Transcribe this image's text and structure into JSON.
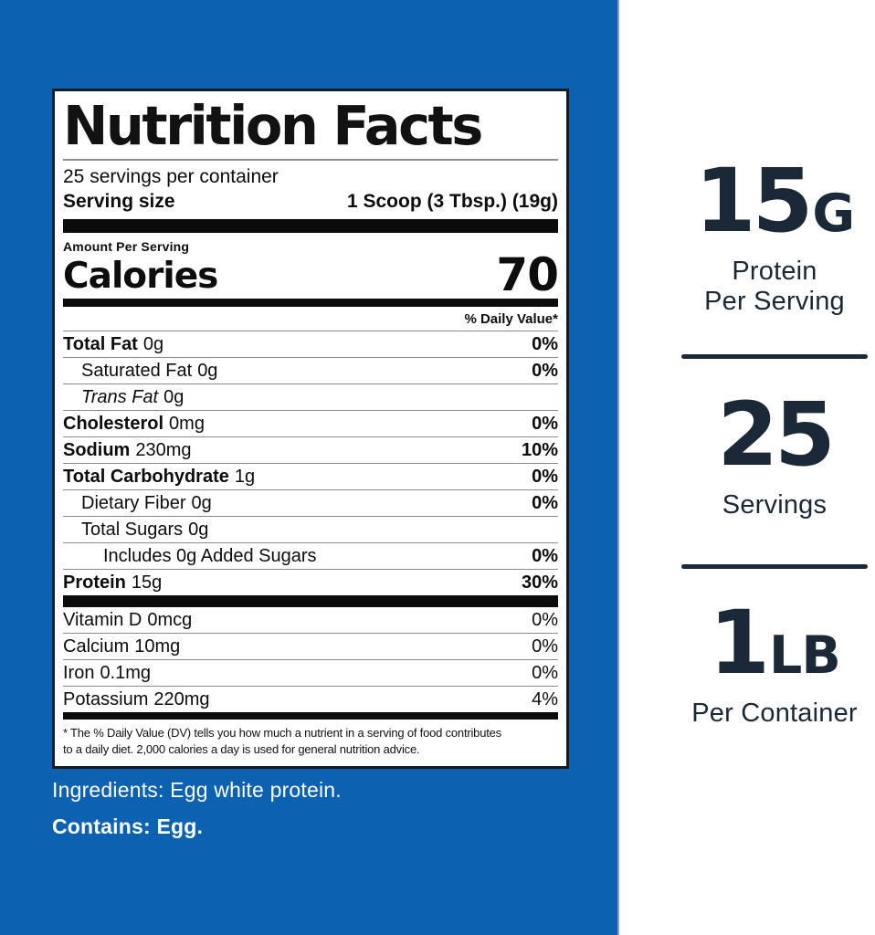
{
  "colors": {
    "background_blue": "#0c62b1",
    "navy_text": "#1b2837",
    "label_border": "#131a22",
    "hairline_gray": "#8b8b8b"
  },
  "label": {
    "title": "Nutrition Facts",
    "servings_per_container": "25 servings per container",
    "serving_size_label": "Serving size",
    "serving_size_value": "1 Scoop (3 Tbsp.) (19g)",
    "amount_per_serving": "Amount Per Serving",
    "calories_label": "Calories",
    "calories_value": "70",
    "daily_value_header": "% Daily Value*",
    "rows": [
      {
        "name": "Total Fat",
        "amount": "0g",
        "dv": "0%"
      },
      {
        "name": "Saturated Fat",
        "amount": "0g",
        "dv": "0%"
      },
      {
        "name": "Trans Fat",
        "amount": "0g",
        "dv": ""
      },
      {
        "name": "Cholesterol",
        "amount": "0mg",
        "dv": "0%"
      },
      {
        "name": "Sodium",
        "amount": "230mg",
        "dv": "10%"
      },
      {
        "name": "Total Carbohydrate",
        "amount": "1g",
        "dv": "0%"
      },
      {
        "name": "Dietary Fiber",
        "amount": "0g",
        "dv": "0%"
      },
      {
        "name": "Total Sugars",
        "amount": "0g",
        "dv": ""
      },
      {
        "name": "Includes 0g Added Sugars",
        "amount": "",
        "dv": "0%"
      },
      {
        "name": "Protein",
        "amount": "15g",
        "dv": "30%"
      }
    ],
    "vitamins": [
      {
        "name": "Vitamin D",
        "amount": "0mcg",
        "dv": "0%"
      },
      {
        "name": "Calcium",
        "amount": "10mg",
        "dv": "0%"
      },
      {
        "name": "Iron",
        "amount": "0.1mg",
        "dv": "0%"
      },
      {
        "name": "Potassium",
        "amount": "220mg",
        "dv": "4%"
      }
    ],
    "footnote_line1": "* The % Daily Value (DV) tells you how much a nutrient in a serving of food contributes",
    "footnote_line2": "to a daily diet. 2,000 calories a day is used for general nutrition advice."
  },
  "ingredients_text": "Ingredients: Egg white protein.",
  "contains_text": "Contains: Egg.",
  "badges": [
    {
      "number": "15",
      "unit": "G",
      "caption": [
        "Protein",
        "Per Serving"
      ]
    },
    {
      "number": "25",
      "unit": "",
      "caption": [
        "Servings"
      ]
    },
    {
      "number": "1",
      "unit": "LB",
      "caption": [
        "Per Container"
      ]
    }
  ]
}
